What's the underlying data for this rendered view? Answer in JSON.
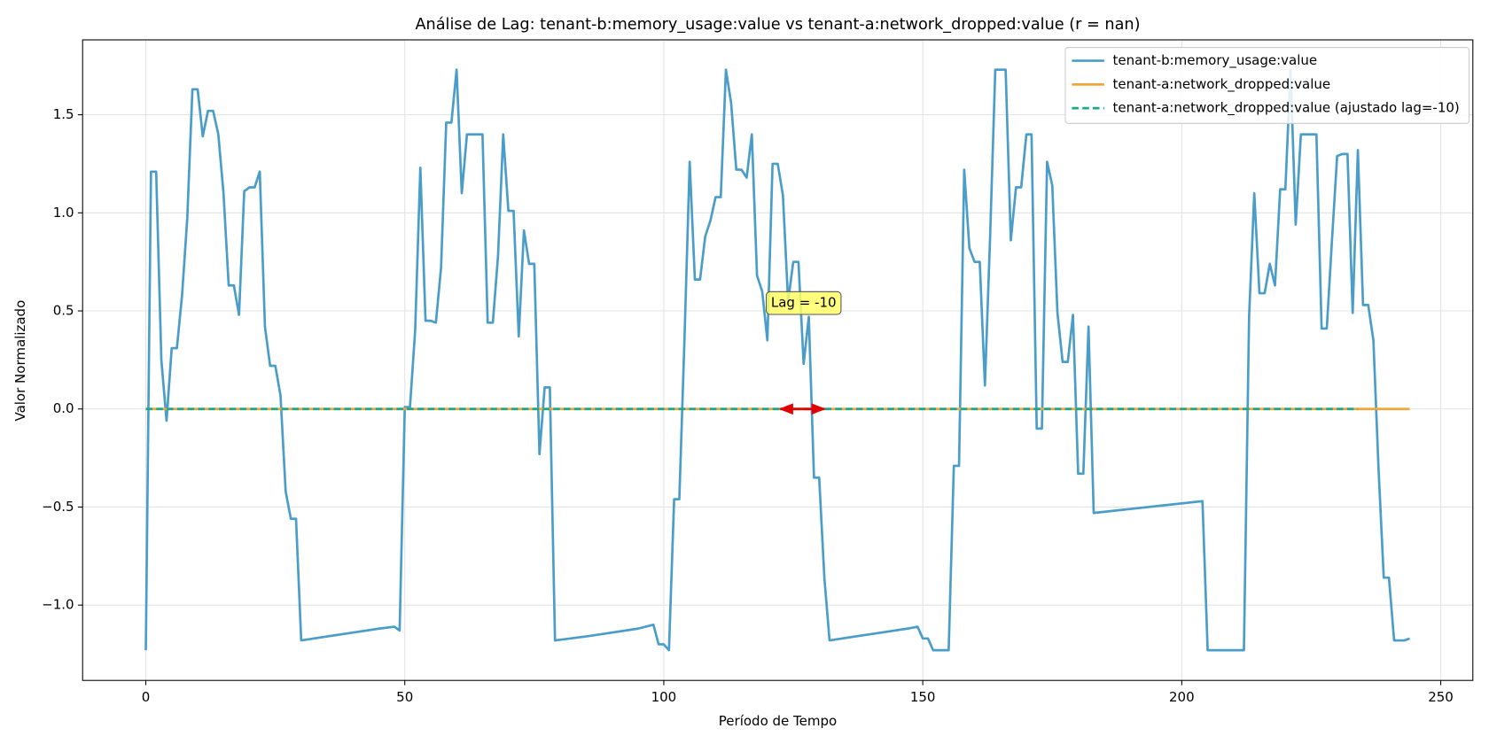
{
  "chart_data": {
    "type": "line",
    "title": "Análise de Lag: tenant-b:memory_usage:value vs tenant-a:network_dropped:value (r = nan)",
    "x_label": "Período de Tempo",
    "y_label": "Valor Normalizado",
    "xlim": [
      -12.2,
      256.2
    ],
    "ylim": [
      -1.384,
      1.882
    ],
    "xticks": [
      0,
      50,
      100,
      150,
      200,
      250
    ],
    "yticks": [
      {
        "value": -1,
        "label": "−1.0"
      },
      {
        "value": -0.5,
        "label": "−0.5"
      },
      {
        "value": 0,
        "label": "0.0"
      },
      0.5,
      {
        "value": 1,
        "label": "1.0"
      },
      1.5
    ],
    "grid": true,
    "legend": "upper right",
    "series": [
      {
        "name": "tenant-b:memory_usage:value",
        "color": "#4a9dc8",
        "dash": false,
        "x": [
          0,
          1,
          2,
          3,
          4,
          5,
          6,
          7,
          8,
          9,
          10,
          11,
          12,
          13,
          14,
          15,
          16,
          17,
          18,
          19,
          20,
          21,
          22,
          23,
          24,
          25,
          26,
          27,
          28,
          29,
          30,
          35,
          40,
          45,
          48,
          49,
          50,
          51,
          52,
          53,
          54,
          55,
          56,
          57,
          58,
          59,
          60,
          61,
          62,
          63,
          64,
          65,
          66,
          67,
          68,
          69,
          70,
          71,
          72,
          73,
          74,
          75,
          76,
          77,
          78,
          79,
          85,
          90,
          95,
          98,
          99,
          100,
          101,
          102,
          103,
          104,
          105,
          106,
          107,
          108,
          109,
          110,
          111,
          112,
          113,
          114,
          115,
          116,
          117,
          118,
          119,
          120,
          121,
          122,
          123,
          124,
          125,
          126,
          127,
          128,
          129,
          130,
          131,
          132,
          137,
          142,
          147,
          149,
          150,
          151,
          152,
          153,
          154,
          155,
          156,
          157,
          158,
          159,
          160,
          161,
          162,
          163,
          164,
          165,
          166,
          167,
          168,
          169,
          170,
          171,
          172,
          173,
          174,
          175,
          176,
          177,
          178,
          179,
          180,
          181,
          182,
          183,
          190,
          197,
          204,
          205,
          212,
          213,
          214,
          215,
          216,
          217,
          218,
          219,
          220,
          221,
          222,
          223,
          224,
          225,
          226,
          227,
          228,
          229,
          230,
          231,
          232,
          233,
          234,
          235,
          236,
          237,
          238,
          239,
          240,
          241,
          242,
          243,
          244
        ],
        "values": [
          -1.23,
          1.21,
          1.21,
          0.25,
          -0.06,
          0.31,
          0.31,
          0.58,
          0.97,
          1.63,
          1.63,
          1.39,
          1.52,
          1.52,
          1.4,
          1.1,
          0.63,
          0.63,
          0.48,
          1.11,
          1.13,
          1.13,
          1.21,
          0.42,
          0.22,
          0.22,
          0.07,
          -0.42,
          -0.56,
          -0.56,
          -1.18,
          -1.16,
          -1.14,
          -1.12,
          -1.11,
          -1.13,
          0.01,
          0.01,
          0.4,
          1.23,
          0.45,
          0.45,
          0.44,
          0.72,
          1.46,
          1.46,
          1.73,
          1.1,
          1.4,
          1.4,
          1.4,
          1.4,
          0.44,
          0.44,
          0.78,
          1.4,
          1.01,
          1.01,
          0.37,
          0.91,
          0.74,
          0.74,
          -0.23,
          0.11,
          0.11,
          -1.18,
          -1.16,
          -1.14,
          -1.12,
          -1.1,
          -1.2,
          -1.2,
          -1.23,
          -0.46,
          -0.46,
          0.36,
          1.26,
          0.66,
          0.66,
          0.88,
          0.96,
          1.08,
          1.08,
          1.73,
          1.56,
          1.22,
          1.22,
          1.18,
          1.4,
          0.68,
          0.6,
          0.35,
          1.25,
          1.25,
          1.09,
          0.55,
          0.75,
          0.75,
          0.23,
          0.47,
          -0.35,
          -0.35,
          -0.86,
          -1.18,
          -1.16,
          -1.14,
          -1.12,
          -1.11,
          -1.17,
          -1.17,
          -1.23,
          -1.23,
          -1.23,
          -1.23,
          -0.29,
          -0.29,
          1.22,
          0.82,
          0.75,
          0.75,
          0.12,
          0.88,
          1.73,
          1.73,
          1.73,
          0.86,
          1.13,
          1.13,
          1.4,
          1.4,
          -0.1,
          -0.1,
          1.26,
          1.14,
          0.49,
          0.24,
          0.24,
          0.48,
          -0.33,
          -0.33,
          0.42,
          -0.53,
          -0.51,
          -0.49,
          -0.47,
          -1.23,
          -1.23,
          0.47,
          1.1,
          0.59,
          0.59,
          0.74,
          0.63,
          1.12,
          1.12,
          1.73,
          0.94,
          1.4,
          1.4,
          1.4,
          1.4,
          0.41,
          0.41,
          0.86,
          1.29,
          1.3,
          1.3,
          0.49,
          1.32,
          0.53,
          0.53,
          0.35,
          -0.31,
          -0.86,
          -0.86,
          -1.18,
          -1.18,
          -1.18,
          -1.17
        ]
      },
      {
        "name": "tenant-a:network_dropped:value",
        "color": "#f0a53c",
        "dash": false,
        "x": [
          0,
          244
        ],
        "values": [
          0,
          0
        ]
      },
      {
        "name": "tenant-a:network_dropped:value (ajustado lag=-10)",
        "color": "#1aa88a",
        "dash": true,
        "x": [
          0,
          234
        ],
        "values": [
          0,
          0
        ]
      }
    ],
    "annotation": {
      "text": "Lag = -10",
      "x": 127,
      "y": 0.54
    },
    "lag_arrow": {
      "x": [
        122.5,
        131
      ],
      "y": 0,
      "color": "#e00000"
    }
  }
}
